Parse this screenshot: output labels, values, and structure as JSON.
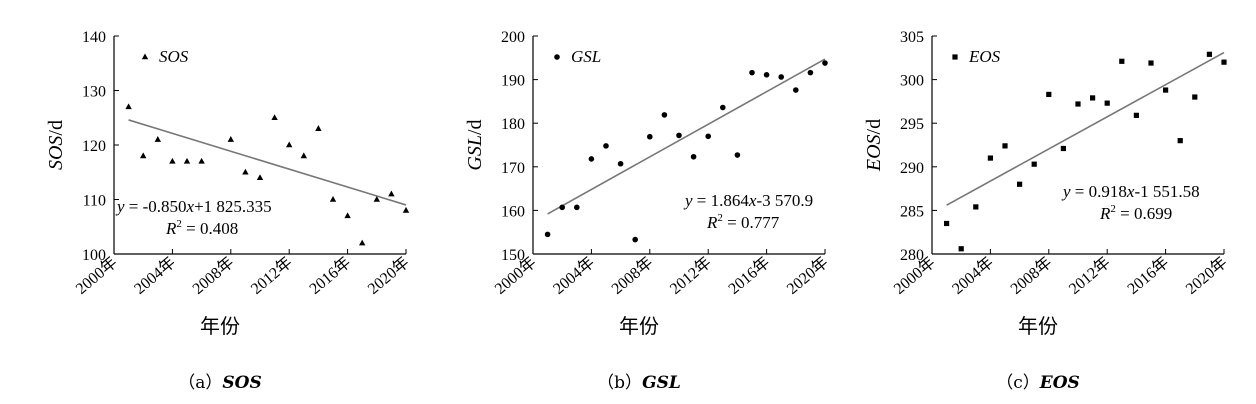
{
  "chart_data": [
    {
      "type": "scatter",
      "id": "sos",
      "marker": "triangle",
      "legend": "SOS",
      "ylabel_var": "SOS",
      "ylabel_unit": "/d",
      "xlabel": "年份",
      "x_ticks": [
        "2000年",
        "2004年",
        "2008年",
        "2012年",
        "2016年",
        "2020年"
      ],
      "y_ticks": [
        "100",
        "110",
        "120",
        "130",
        "140"
      ],
      "xlim": [
        2000,
        2020
      ],
      "ylim": [
        100,
        140
      ],
      "x": [
        2001,
        2002,
        2003,
        2004,
        2005,
        2006,
        2008,
        2009,
        2010,
        2011,
        2012,
        2013,
        2014,
        2015,
        2016,
        2017,
        2018,
        2019,
        2020
      ],
      "y": [
        127,
        118,
        121,
        117,
        117,
        117,
        121,
        115,
        114,
        125,
        120,
        118,
        123,
        110,
        107,
        102,
        110,
        111,
        108
      ],
      "trend": {
        "x0": 2001,
        "y0": 124.6,
        "x1": 2020,
        "y1": 109.0
      },
      "equation": {
        "y": "y",
        "eq": " = -0.850",
        "x": "x",
        "rest": "+1 825.335",
        "R": "R",
        "sup": "2",
        "r2": " = 0.408"
      },
      "caption": {
        "prefix": "（a）",
        "name": "SOS"
      }
    },
    {
      "type": "scatter",
      "id": "gsl",
      "marker": "circle",
      "legend": "GSL",
      "ylabel_var": "GSL",
      "ylabel_unit": "/d",
      "xlabel": "年份",
      "x_ticks": [
        "2000年",
        "2004年",
        "2008年",
        "2012年",
        "2016年",
        "2020年"
      ],
      "y_ticks": [
        "150",
        "160",
        "170",
        "180",
        "190",
        "200"
      ],
      "xlim": [
        2000,
        2020
      ],
      "ylim": [
        150,
        200
      ],
      "x": [
        2001,
        2002,
        2003,
        2004,
        2005,
        2006,
        2007,
        2008,
        2009,
        2010,
        2011,
        2012,
        2013,
        2014,
        2015,
        2016,
        2017,
        2018,
        2019,
        2020
      ],
      "y": [
        154.5,
        160.7,
        160.7,
        171.8,
        174.8,
        170.7,
        153.3,
        176.9,
        181.9,
        177.2,
        172.3,
        177.0,
        183.6,
        172.7,
        191.6,
        191.1,
        190.6,
        187.6,
        191.6,
        193.8
      ],
      "trend": {
        "x0": 2001,
        "y0": 159.2,
        "x1": 2020,
        "y1": 194.7
      },
      "equation": {
        "y": "y",
        "eq": " = 1.864",
        "x": "x",
        "rest": "-3 570.9",
        "R": "R",
        "sup": "2",
        "r2": " = 0.777"
      },
      "caption": {
        "prefix": "（b）",
        "name": "GSL"
      }
    },
    {
      "type": "scatter",
      "id": "eos",
      "marker": "square",
      "legend": "EOS",
      "ylabel_var": "EOS",
      "ylabel_unit": "/d",
      "xlabel": "年份",
      "x_ticks": [
        "2000年",
        "2004年",
        "2008年",
        "2012年",
        "2016年",
        "2020年"
      ],
      "y_ticks": [
        "280",
        "285",
        "290",
        "295",
        "300",
        "305"
      ],
      "xlim": [
        2000,
        2020
      ],
      "ylim": [
        280,
        305
      ],
      "x": [
        2001,
        2002,
        2003,
        2004,
        2005,
        2006,
        2007,
        2008,
        2009,
        2010,
        2011,
        2012,
        2013,
        2014,
        2015,
        2016,
        2017,
        2018,
        2019,
        2020
      ],
      "y": [
        283.5,
        280.6,
        285.4,
        291.0,
        292.4,
        288.0,
        290.3,
        298.3,
        292.1,
        297.2,
        297.9,
        297.3,
        302.1,
        295.9,
        301.9,
        298.8,
        293.0,
        298.0,
        302.9,
        302.0
      ],
      "trend": {
        "x0": 2001,
        "y0": 285.6,
        "x1": 2020,
        "y1": 303.1
      },
      "equation": {
        "y": "y",
        "eq": " = 0.918",
        "x": "x",
        "rest": "-1 551.58",
        "R": "R",
        "sup": "2",
        "r2": " = 0.699"
      },
      "caption": {
        "prefix": "（c）",
        "name": "EOS"
      }
    }
  ]
}
